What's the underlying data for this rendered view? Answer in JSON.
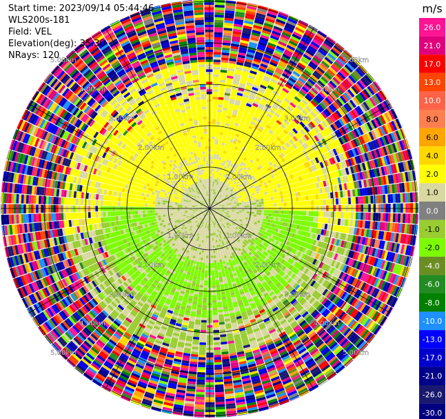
{
  "header": {
    "start_time": "Start time: 2023/09/14 05:44:46",
    "instrument": "WLS200s-181",
    "field": "Field: VEL",
    "elevation": "Elevation(deg): 35.30",
    "nrays": "NRays: 120"
  },
  "colorbar": {
    "unit": "m/s",
    "ticks": [
      "26.0",
      "21.0",
      "17.0",
      "13.0",
      "10.0",
      "8.0",
      "6.0",
      "4.0",
      "2.0",
      "1.0",
      "0.0",
      "-1.0",
      "-2.0",
      "-4.0",
      "-6.0",
      "-8.0",
      "-10.0",
      "-13.0",
      "-17.0",
      "-21.0",
      "-26.0",
      "-30.0"
    ],
    "colors": [
      "#ff1493",
      "#e0007c",
      "#ff0000",
      "#ff4500",
      "#ff6347",
      "#ff7f50",
      "#ffa500",
      "#ffd700",
      "#ffff00",
      "#d8d8a0",
      "#808080",
      "#9acd32",
      "#7cfc00",
      "#6b8e23",
      "#228b22",
      "#008000",
      "#1e90ff",
      "#0000ff",
      "#0000cd",
      "#00008b",
      "#191970",
      "#000080"
    ]
  },
  "range_labels": [
    "1.00km",
    "2.00km",
    "3.00km",
    "4.00km",
    "5.00km",
    "6.00km"
  ],
  "chart_data": {
    "type": "ppi",
    "title": "",
    "field": "VEL",
    "units": "m/s",
    "elevation_deg": 35.3,
    "n_rays": 120,
    "range_rings_km": [
      1,
      2,
      3,
      4,
      5,
      6
    ],
    "azimuth_spokes_deg": [
      0,
      30,
      60,
      90,
      120,
      150,
      180,
      210,
      240,
      270,
      300,
      330
    ],
    "velocity_pattern": [
      {
        "range_km": [
          0,
          1.5
        ],
        "description": "near-field gray/green mix",
        "dominant_values": [
          0.0,
          -2.0
        ]
      },
      {
        "range_km": [
          1.5,
          2.5
        ],
        "north_side": 2.0,
        "south_side": -4.0
      },
      {
        "range_km": [
          2.5,
          3.5
        ],
        "north_side": 2.0,
        "south_side": -2.0
      },
      {
        "range_km": [
          3.5,
          6.5
        ],
        "description": "noise (random values)"
      }
    ],
    "colorbar_ticks": [
      26.0,
      21.0,
      17.0,
      13.0,
      10.0,
      8.0,
      6.0,
      4.0,
      2.0,
      1.0,
      0.0,
      -1.0,
      -2.0,
      -4.0,
      -6.0,
      -8.0,
      -10.0,
      -13.0,
      -17.0,
      -21.0,
      -26.0,
      -30.0
    ]
  }
}
